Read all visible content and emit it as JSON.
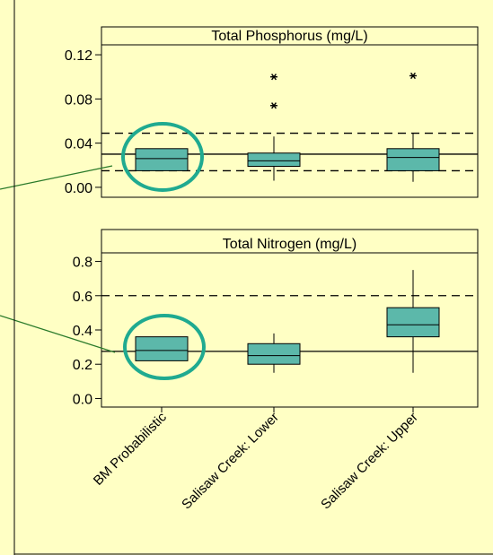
{
  "colors": {
    "background": "#ffffc4",
    "box_fill": "#5cb8aa",
    "circle": "#1faa90",
    "leader": "#2a7a2a",
    "outline": "#000000"
  },
  "categories": [
    "BM Probabilistic",
    "Salisaw Creek: Lower",
    "Salisaw Creek: Upper"
  ],
  "chart_data": [
    {
      "type": "box",
      "title": "Total Phosphorus (mg/L)",
      "categories": [
        "BM Probabilistic",
        "Salisaw Creek: Lower",
        "Salisaw Creek: Upper"
      ],
      "ylim": [
        -0.009,
        0.129
      ],
      "yticks": [
        {
          "value": 0.12,
          "label": "0.12"
        },
        {
          "value": 0.08,
          "label": "0.08"
        },
        {
          "value": 0.04,
          "label": "0.04"
        },
        {
          "value": 0.0,
          "label": "0.00"
        }
      ],
      "reference_lines": [
        {
          "value": 0.03,
          "style": "solid"
        },
        {
          "value": 0.049,
          "style": "dashed"
        },
        {
          "value": 0.015,
          "style": "dashed"
        }
      ],
      "boxes": [
        {
          "category": "BM Probabilistic",
          "q1": 0.015,
          "median": 0.026,
          "q3": 0.035,
          "whisker_low": 0.015,
          "whisker_high": 0.035,
          "outliers": []
        },
        {
          "category": "Salisaw Creek: Lower",
          "q1": 0.019,
          "median": 0.024,
          "q3": 0.031,
          "whisker_low": 0.006,
          "whisker_high": 0.046,
          "outliers": [
            0.074,
            0.1
          ]
        },
        {
          "category": "Salisaw Creek: Upper",
          "q1": 0.015,
          "median": 0.027,
          "q3": 0.035,
          "whisker_low": 0.005,
          "whisker_high": 0.049,
          "outliers": [
            0.101
          ]
        }
      ],
      "highlight_category": "BM Probabilistic"
    },
    {
      "type": "box",
      "title": "Total Nitrogen (mg/L)",
      "categories": [
        "BM Probabilistic",
        "Salisaw Creek: Lower",
        "Salisaw Creek: Upper"
      ],
      "ylim": [
        -0.05,
        0.85
      ],
      "yticks": [
        {
          "value": 0.8,
          "label": "0.8"
        },
        {
          "value": 0.6,
          "label": "0.6"
        },
        {
          "value": 0.4,
          "label": "0.4"
        },
        {
          "value": 0.2,
          "label": "0.2"
        },
        {
          "value": 0.0,
          "label": "0.0"
        }
      ],
      "reference_lines": [
        {
          "value": 0.275,
          "style": "solid"
        },
        {
          "value": 0.6,
          "style": "dashed"
        }
      ],
      "boxes": [
        {
          "category": "BM Probabilistic",
          "q1": 0.22,
          "median": 0.28,
          "q3": 0.36,
          "whisker_low": 0.22,
          "whisker_high": 0.36,
          "outliers": []
        },
        {
          "category": "Salisaw Creek: Lower",
          "q1": 0.2,
          "median": 0.25,
          "q3": 0.32,
          "whisker_low": 0.15,
          "whisker_high": 0.38,
          "outliers": []
        },
        {
          "category": "Salisaw Creek: Upper",
          "q1": 0.36,
          "median": 0.43,
          "q3": 0.53,
          "whisker_low": 0.15,
          "whisker_high": 0.75,
          "outliers": []
        }
      ],
      "highlight_category": "BM Probabilistic"
    }
  ]
}
